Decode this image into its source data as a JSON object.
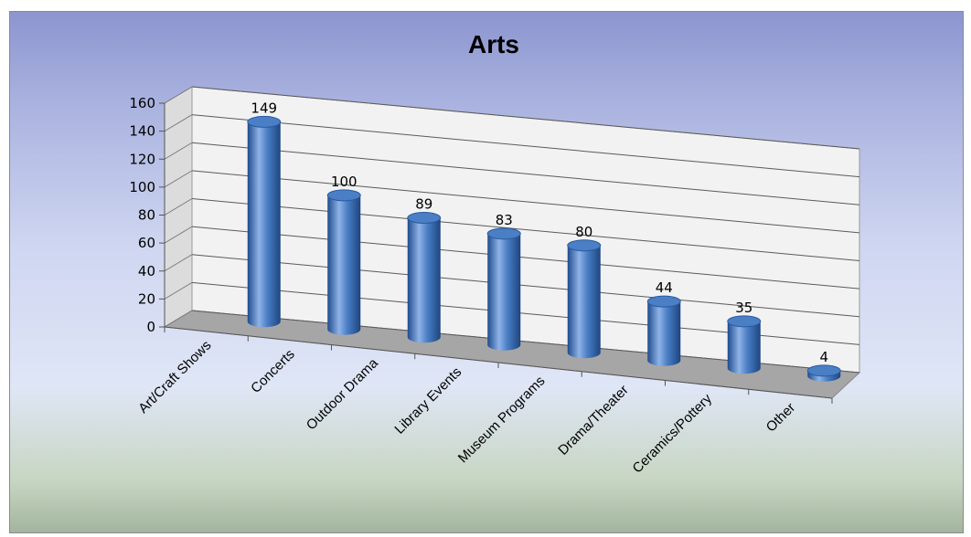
{
  "chart_data": {
    "type": "bar",
    "style": "3d-cylinder",
    "title": "Arts",
    "categories": [
      "Art/Craft Shows",
      "Concerts",
      "Outdoor Drama",
      "Library Events",
      "Museum Programs",
      "Drama/Theater",
      "Ceramics/Pottery",
      "Other"
    ],
    "values": [
      149,
      100,
      89,
      83,
      80,
      44,
      35,
      4
    ],
    "ylim": [
      0,
      160
    ],
    "yticks": [
      "0",
      "20",
      "40",
      "60",
      "80",
      "100",
      "120",
      "140",
      "160"
    ],
    "grid": true,
    "legend": "none",
    "colors": {
      "bar": "#4a7ec5",
      "bar_dark": "#1f4c8f",
      "bar_light": "#8fb3e6"
    }
  }
}
